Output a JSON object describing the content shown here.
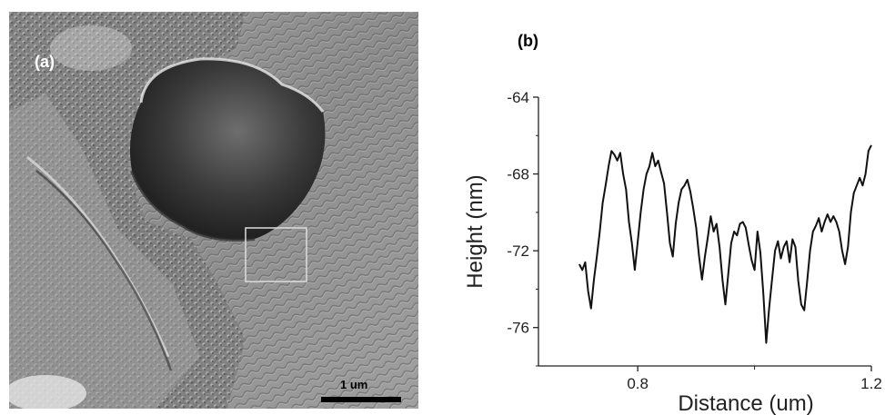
{
  "panel_a": {
    "label": "(a)",
    "scale_bar_label": "1 um"
  },
  "panel_b": {
    "label": "(b)"
  },
  "chart_data": {
    "type": "line",
    "xlabel": "Distance (um)",
    "ylabel": "Height (nm)",
    "xlim": [
      0.63,
      1.2
    ],
    "ylim": [
      -78,
      -64
    ],
    "x_ticks": [
      0.8,
      1.2
    ],
    "y_ticks": [
      -64,
      -68,
      -72,
      -76
    ],
    "grid": false,
    "series": [
      {
        "x": [
          0.7,
          0.705,
          0.71,
          0.715,
          0.72,
          0.725,
          0.73,
          0.735,
          0.74,
          0.745,
          0.75,
          0.755,
          0.76,
          0.765,
          0.77,
          0.775,
          0.78,
          0.785,
          0.79,
          0.795,
          0.8,
          0.805,
          0.81,
          0.815,
          0.82,
          0.825,
          0.83,
          0.835,
          0.84,
          0.845,
          0.85,
          0.855,
          0.86,
          0.865,
          0.87,
          0.875,
          0.88,
          0.885,
          0.89,
          0.895,
          0.9,
          0.905,
          0.91,
          0.915,
          0.92,
          0.925,
          0.93,
          0.935,
          0.94,
          0.945,
          0.95,
          0.955,
          0.96,
          0.965,
          0.97,
          0.975,
          0.98,
          0.985,
          0.99,
          0.995,
          1.0,
          1.005,
          1.01,
          1.015,
          1.02,
          1.025,
          1.03,
          1.035,
          1.04,
          1.045,
          1.05,
          1.055,
          1.06,
          1.065,
          1.07,
          1.075,
          1.08,
          1.085,
          1.09,
          1.095,
          1.1,
          1.105,
          1.11,
          1.115,
          1.12,
          1.125,
          1.13,
          1.135,
          1.14,
          1.145,
          1.15,
          1.155,
          1.16,
          1.165,
          1.17,
          1.175,
          1.18,
          1.185,
          1.19,
          1.195,
          1.2
        ],
        "values": [
          -72.7,
          -73.0,
          -72.6,
          -74.1,
          -75.0,
          -73.5,
          -72.3,
          -71.0,
          -69.5,
          -68.6,
          -67.6,
          -66.8,
          -67.0,
          -67.3,
          -66.9,
          -68.0,
          -68.8,
          -70.5,
          -71.6,
          -73.0,
          -71.5,
          -70.0,
          -68.8,
          -68.0,
          -67.6,
          -66.9,
          -67.6,
          -67.3,
          -67.9,
          -68.5,
          -70.0,
          -71.6,
          -72.3,
          -70.6,
          -69.5,
          -68.8,
          -68.6,
          -68.3,
          -68.9,
          -69.8,
          -70.8,
          -72.3,
          -73.5,
          -72.3,
          -71.3,
          -70.2,
          -71.0,
          -70.6,
          -71.8,
          -73.5,
          -74.8,
          -73.2,
          -71.6,
          -71.0,
          -71.2,
          -70.6,
          -70.5,
          -70.8,
          -71.7,
          -72.5,
          -73.0,
          -71.0,
          -72.1,
          -74.2,
          -76.8,
          -75.0,
          -73.5,
          -72.0,
          -71.5,
          -72.4,
          -71.8,
          -71.5,
          -72.6,
          -71.4,
          -71.8,
          -73.6,
          -74.8,
          -75.1,
          -73.6,
          -72.0,
          -71.0,
          -70.7,
          -70.3,
          -71.0,
          -70.5,
          -70.1,
          -70.5,
          -70.2,
          -70.5,
          -71.0,
          -72.0,
          -72.7,
          -71.8,
          -70.0,
          -69.0,
          -68.6,
          -68.2,
          -68.6,
          -68.0,
          -66.8,
          -66.5
        ]
      }
    ]
  }
}
